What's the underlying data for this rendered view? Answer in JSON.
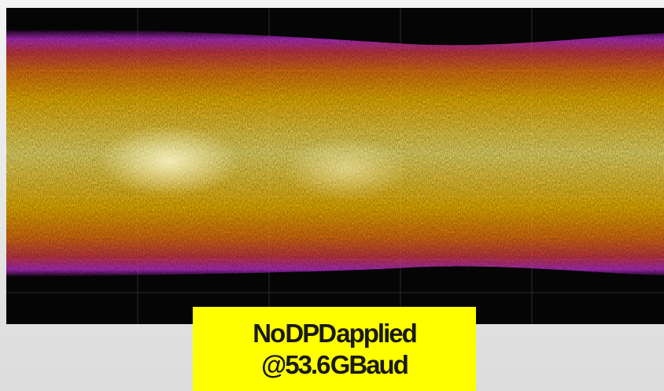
{
  "label": {
    "line1": "No DPD applied",
    "line2": "@53.6 GBaud"
  }
}
